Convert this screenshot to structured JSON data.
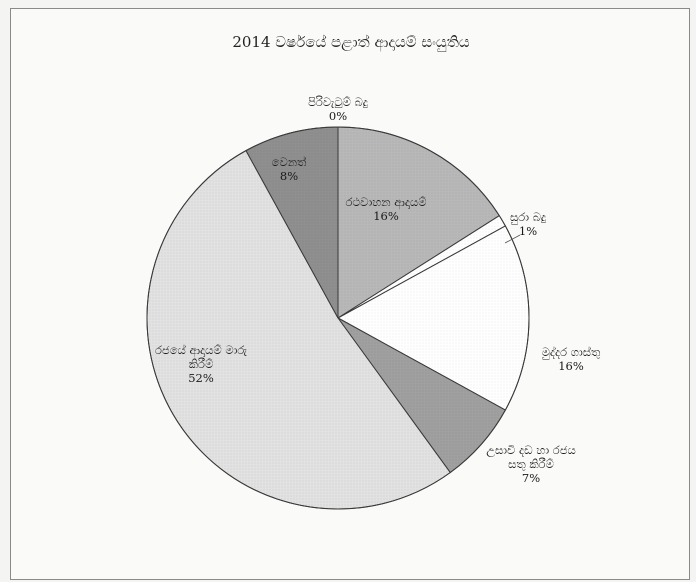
{
  "chart_data": {
    "type": "pie",
    "title": "2014 වර්ෂයේ පළාත් ආදායම් සංයුතිය",
    "categories": [
      "පිරිවැටුම් බදු",
      "රථවාහන ආදායම්",
      "සුරා බදු",
      "මුද්දර ගාස්තු",
      "උසාවි දඩ හා රජය සතු කිරීම්",
      "රජයේ ආදායම් මාරු කිරීම්",
      "වෙනත්"
    ],
    "values": [
      0,
      16,
      1,
      16,
      7,
      52,
      8
    ],
    "labels": [
      {
        "lines": [
          "පිරිවැටුම් බදු",
          "0%"
        ]
      },
      {
        "lines": [
          "රථවාහන ආදායම්",
          "16%"
        ]
      },
      {
        "lines": [
          "සුරා බදු",
          "1%"
        ]
      },
      {
        "lines": [
          "මුද්දර ගාස්තු",
          "16%"
        ]
      },
      {
        "lines": [
          "උසාවි දඩ හා රජය",
          "සතු කිරීම්",
          "7%"
        ]
      },
      {
        "lines": [
          "රජයේ ආදායම් මාරු",
          "කිරීම්",
          "52%"
        ]
      },
      {
        "lines": [
          "වෙනත්",
          "8%"
        ]
      }
    ],
    "colors": [
      "#a9a9a9",
      "#b8b8b8",
      "#ffffff",
      "#ffffff",
      "#a0a0a0",
      "#e2e2e2",
      "#8f8f8f"
    ]
  }
}
